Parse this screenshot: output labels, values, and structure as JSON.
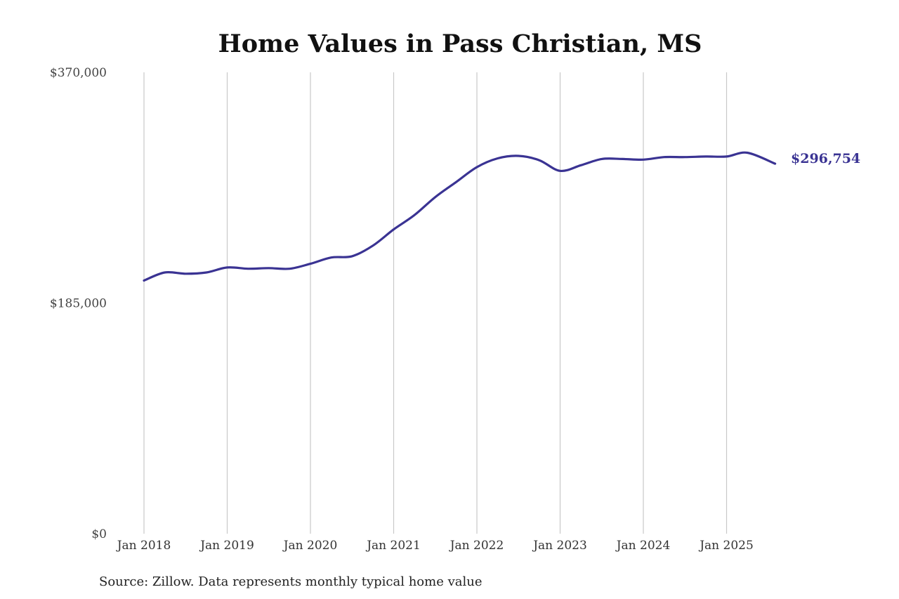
{
  "chart_data": {
    "type": "line",
    "title": "Home Values in Pass Christian, MS",
    "xlabel": "",
    "ylabel": "",
    "ylim": [
      0,
      370000
    ],
    "ytick_values": [
      0,
      185000,
      370000
    ],
    "ytick_labels": [
      "$0",
      "$185,000",
      "$370,000"
    ],
    "xtick_labels": [
      "Jan 2018",
      "Jan 2019",
      "Jan 2020",
      "Jan 2021",
      "Jan 2022",
      "Jan 2023",
      "Jan 2024",
      "Jan 2025"
    ],
    "xtick_dates": [
      "2018-01",
      "2019-01",
      "2020-01",
      "2021-01",
      "2022-01",
      "2023-01",
      "2024-01",
      "2025-01"
    ],
    "grid": "vertical",
    "legend": "none",
    "line_color": "#3a3393",
    "series": [
      {
        "x": [
          "2018-01",
          "2018-04",
          "2018-07",
          "2018-10",
          "2019-01",
          "2019-04",
          "2019-07",
          "2019-10",
          "2020-01",
          "2020-04",
          "2020-07",
          "2020-10",
          "2021-01",
          "2021-04",
          "2021-07",
          "2021-10",
          "2022-01",
          "2022-04",
          "2022-07",
          "2022-10",
          "2023-01",
          "2023-04",
          "2023-07",
          "2023-10",
          "2024-01",
          "2024-04",
          "2024-07",
          "2024-10",
          "2025-01",
          "2025-04",
          "2025-08"
        ],
        "values": [
          203000,
          209500,
          208500,
          209500,
          213500,
          212500,
          213000,
          212500,
          216500,
          221500,
          222500,
          231000,
          244000,
          255500,
          270000,
          282000,
          294000,
          301000,
          303000,
          299500,
          291000,
          295500,
          300500,
          300500,
          300000,
          302000,
          302000,
          302500,
          302500,
          305500,
          296754
        ]
      }
    ],
    "end_label": "$296,754"
  },
  "source": "Source: Zillow. Data represents monthly typical home value"
}
